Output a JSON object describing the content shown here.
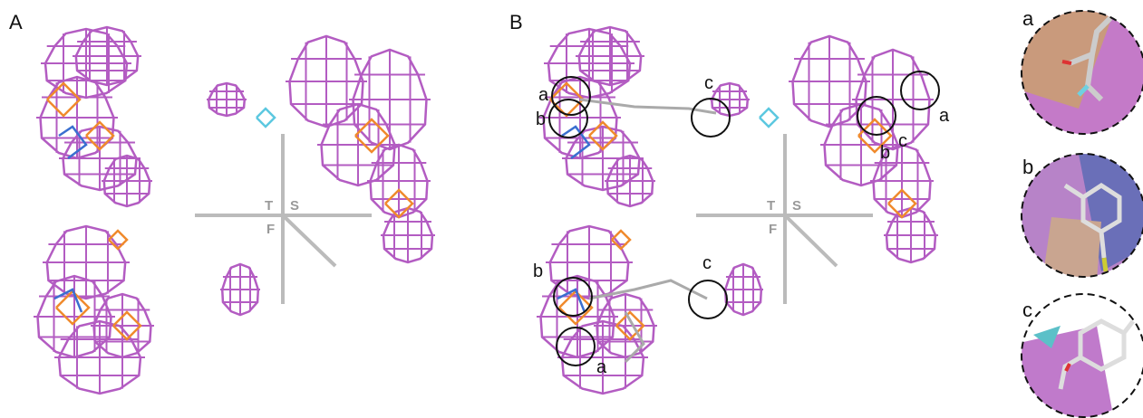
{
  "panels": [
    {
      "label": "A",
      "axes": {
        "t": "T",
        "s": "S",
        "f": "F"
      }
    },
    {
      "label": "B",
      "axes": {
        "t": "T",
        "s": "S",
        "f": "F"
      },
      "markers": [
        "a",
        "b",
        "c",
        "a",
        "b",
        "c",
        "b",
        "a",
        "c"
      ]
    }
  ],
  "insets": [
    {
      "label": "a"
    },
    {
      "label": "b"
    },
    {
      "label": "c"
    }
  ]
}
